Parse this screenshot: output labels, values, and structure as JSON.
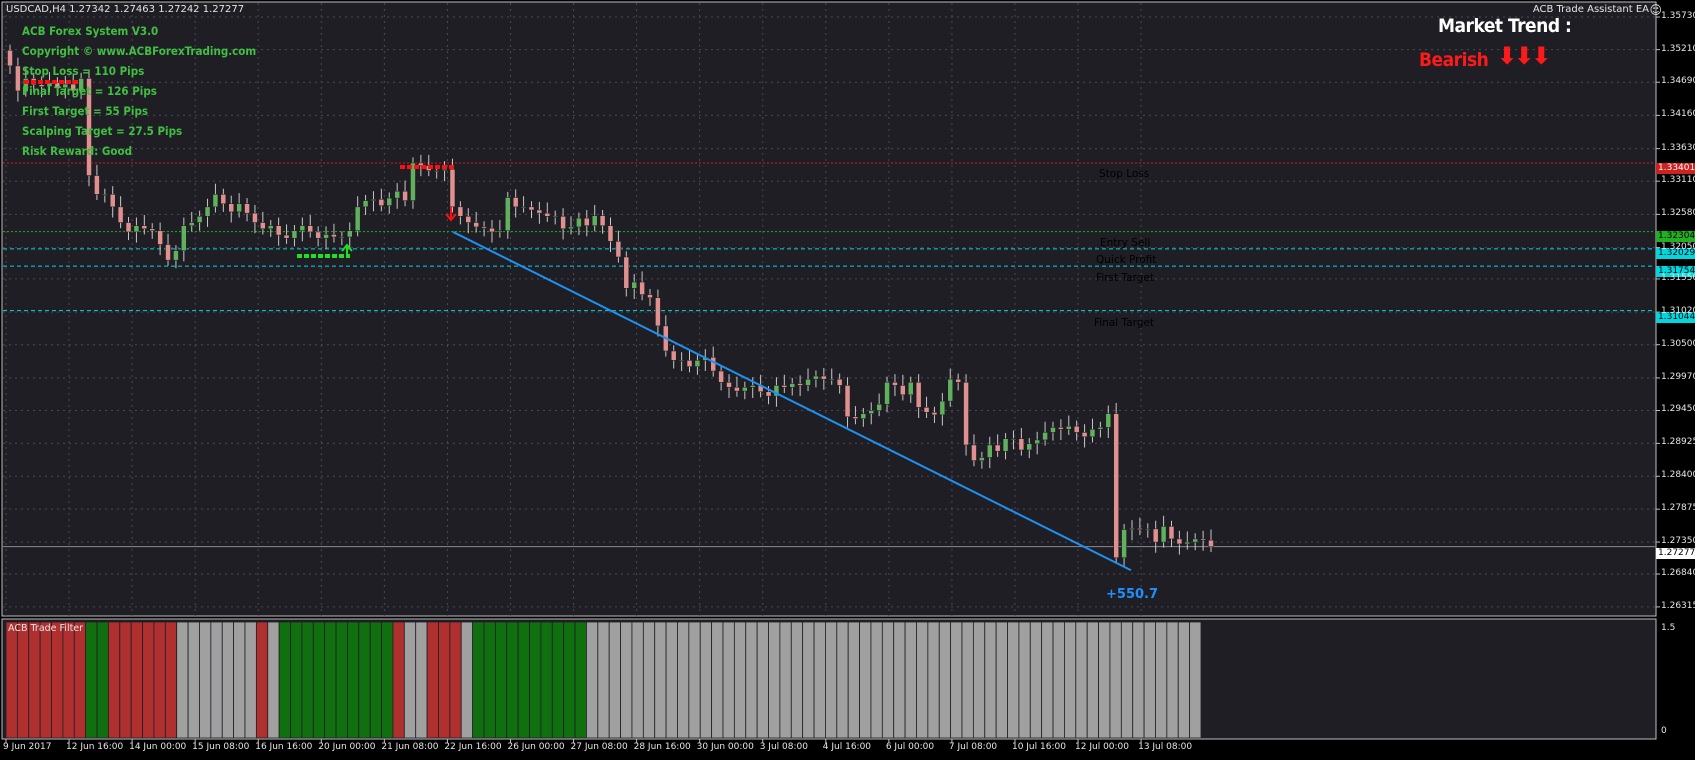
{
  "symbol_info": "USDCAD,H4  1.27342 1.27463 1.27242 1.27277",
  "ea_name": "ACB Trade Assistant EA",
  "smiley_icon": "smiley-face-icon",
  "info_panel": {
    "lines": [
      "ACB Forex System V3.0",
      "Copyright ©  www.ACBForexTrading.com",
      "Stop Loss = 110 Pips",
      "Final Target = 126 Pips",
      "First Target = 55 Pips",
      "Scalping Target = 27.5 Pips",
      "Risk Reward: Good"
    ],
    "color": "#40c040"
  },
  "market_trend": {
    "title": "Market Trend :",
    "value": "Bearish",
    "arrows": "⬇⬇⬇",
    "color": "#ff1a1a"
  },
  "levels": [
    {
      "name": "Stop Loss",
      "price": 1.33401,
      "price_label": "1.33401",
      "color": "#d02020",
      "dash": "dotted",
      "label_color": "#e02020"
    },
    {
      "name": "Entry Sell",
      "price": 1.32304,
      "price_label": "1.32304",
      "color": "#20b020",
      "dash": "dotted",
      "label_color": "#30d030"
    },
    {
      "name": "Quick Profit",
      "price": 1.32029,
      "price_label": "1.32029",
      "color": "#00d8e0",
      "dash": "dashed",
      "label_color": "#20e0e8"
    },
    {
      "name": "First Target",
      "price": 1.31754,
      "price_label": "1.31754",
      "color": "#00d8e0",
      "dash": "dashed",
      "label_color": "#20e0e8"
    },
    {
      "name": "Final Target",
      "price": 1.31044,
      "price_label": "1.31044",
      "color": "#00d8e0",
      "dash": "dashed",
      "label_color": "#20e0e8"
    }
  ],
  "current_price": {
    "value": 1.27277,
    "label": "1.27277"
  },
  "result_label": "+550.7",
  "filter_title": "ACB Trade Filter",
  "colors": {
    "background": "#000000",
    "chart_bg": "#1e1e24",
    "bull_body": "#60b060",
    "bear_body": "#e09090",
    "filter_red": "#b03030",
    "filter_green": "#107010",
    "filter_grey": "#a0a0a0",
    "trend_line": "#2090f0"
  },
  "chart_data": {
    "type": "candlestick",
    "symbol": "USDCAD",
    "timeframe": "H4",
    "ylim": [
      1.2617,
      1.3597
    ],
    "y_ticks": [
      "1.35730",
      "1.35210",
      "1.34690",
      "1.34160",
      "1.33630",
      "1.33110",
      "1.32580",
      "1.32050",
      "1.31550",
      "1.31020",
      "1.30500",
      "1.29970",
      "1.29450",
      "1.28925",
      "1.28400",
      "1.27875",
      "1.27350",
      "1.26840",
      "1.26315"
    ],
    "x_ticks": [
      "9 Jun 2017",
      "12 Jun 16:00",
      "14 Jun 00:00",
      "15 Jun 08:00",
      "16 Jun 16:00",
      "20 Jun 00:00",
      "21 Jun 08:00",
      "22 Jun 16:00",
      "26 Jun 00:00",
      "27 Jun 08:00",
      "28 Jun 16:00",
      "30 Jun 00:00",
      "3 Jul 08:00",
      "4 Jul 16:00",
      "6 Jul 00:00",
      "7 Jul 08:00",
      "10 Jul 16:00",
      "12 Jul 00:00",
      "13 Jul 08:00"
    ],
    "closes": [
      1.3495,
      1.3455,
      1.3475,
      1.3465,
      1.3462,
      1.3468,
      1.346,
      1.3466,
      1.3455,
      1.3475,
      1.332,
      1.329,
      1.329,
      1.327,
      1.3245,
      1.323,
      1.324,
      1.3235,
      1.3232,
      1.321,
      1.3185,
      1.32,
      1.324,
      1.3245,
      1.3255,
      1.327,
      1.329,
      1.3275,
      1.3262,
      1.3275,
      1.326,
      1.3245,
      1.3235,
      1.324,
      1.3225,
      1.322,
      1.3232,
      1.324,
      1.323,
      1.322,
      1.3226,
      1.3222,
      1.3222,
      1.3232,
      1.327,
      1.328,
      1.3282,
      1.3272,
      1.3284,
      1.3295,
      1.328,
      1.334,
      1.3336,
      1.3328,
      1.3328,
      1.333,
      1.327,
      1.3255,
      1.3245,
      1.3238,
      1.3236,
      1.323,
      1.3232,
      1.3285,
      1.327,
      1.327,
      1.3265,
      1.326,
      1.3255,
      1.3255,
      1.3235,
      1.3238,
      1.3252,
      1.324,
      1.3256,
      1.324,
      1.3215,
      1.319,
      1.314,
      1.315,
      1.313,
      1.3125,
      1.308,
      1.304,
      1.3025,
      1.3025,
      1.3015,
      1.3025,
      1.303,
      1.3008,
      1.299,
      1.2982,
      1.2976,
      1.2982,
      1.2985,
      1.2975,
      1.2968,
      1.2985,
      1.2982,
      1.2988,
      1.2985,
      1.2995,
      1.3,
      1.2995,
      1.2995,
      1.2985,
      1.2935,
      1.2932,
      1.294,
      1.2945,
      1.2955,
      1.299,
      1.2985,
      1.297,
      1.299,
      1.295,
      1.2942,
      1.2938,
      1.296,
      1.2995,
      1.299,
      1.289,
      1.2865,
      1.287,
      1.289,
      1.288,
      1.29,
      1.29,
      1.2882,
      1.2892,
      1.2898,
      1.291,
      1.2918,
      1.2915,
      1.292,
      1.291,
      1.2903,
      1.2915,
      1.2918,
      1.294,
      1.271,
      1.2755,
      1.2757,
      1.2755,
      1.2756,
      1.2735,
      1.276,
      1.274,
      1.2732,
      1.2735,
      1.274,
      1.2738,
      1.2728
    ],
    "trend_line": {
      "from_price": 1.323,
      "to_price": 1.269,
      "label": "+550.7"
    }
  },
  "trade_filter": {
    "type": "histogram",
    "y_ticks": [
      "1.5",
      "0"
    ],
    "pattern": "RRRRRRRGGRRRRRRXXXXXXXRXGGGGGGGGGGRXXRRRXGGGGGGGGGGXXXXXXXXXXXXXXXXXXXXXXXXXXXXXXXXXXXXXXXXXXXXXXXXXXXXXX"
  }
}
